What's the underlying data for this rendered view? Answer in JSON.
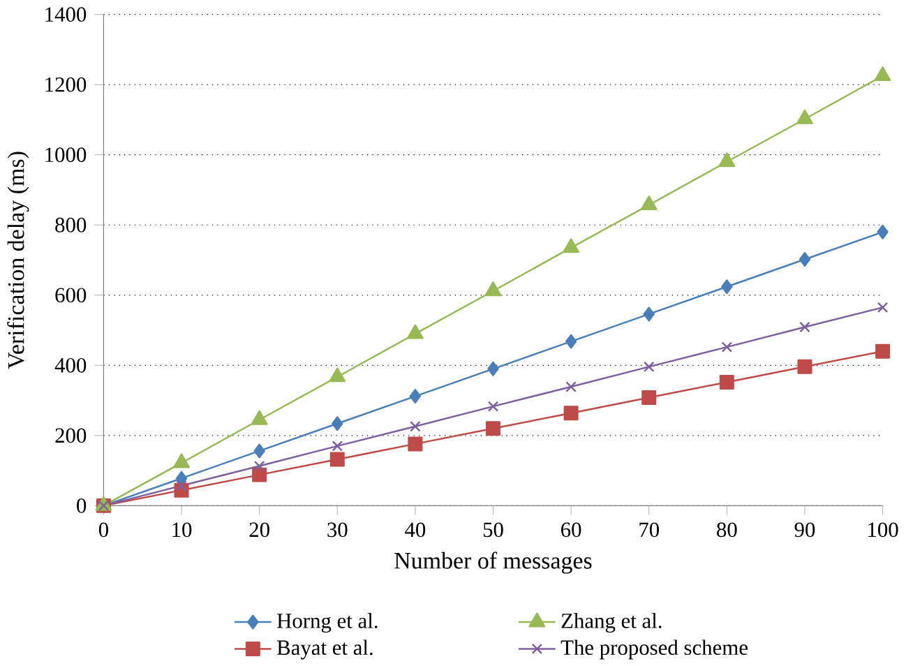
{
  "chart_data": {
    "type": "line",
    "xlabel": "Number of messages",
    "ylabel": "Verification delay (ms)",
    "x": [
      0,
      10,
      20,
      30,
      40,
      50,
      60,
      70,
      80,
      90,
      100
    ],
    "series": [
      {
        "name": "Horng et al.",
        "color": "#4a7ebb",
        "marker": "diamond",
        "values": [
          0,
          78,
          156,
          234,
          312,
          390,
          468,
          546,
          624,
          702,
          780
        ]
      },
      {
        "name": "Bayat et al.",
        "color": "#be4b48",
        "marker": "square",
        "values": [
          0,
          44,
          88,
          132,
          176,
          220,
          264,
          308,
          352,
          396,
          440
        ]
      },
      {
        "name": "Zhang et al.",
        "color": "#98b954",
        "marker": "triangle",
        "values": [
          0,
          122,
          245,
          367,
          490,
          612,
          735,
          857,
          980,
          1102,
          1225
        ]
      },
      {
        "name": "The proposed scheme",
        "color": "#7d60a0",
        "marker": "cross",
        "values": [
          0,
          57,
          113,
          170,
          226,
          283,
          339,
          396,
          452,
          509,
          565
        ]
      }
    ],
    "xlim": [
      0,
      100
    ],
    "xticks": [
      0,
      10,
      20,
      30,
      40,
      50,
      60,
      70,
      80,
      90,
      100
    ],
    "ylim": [
      0,
      1400
    ],
    "yticks": [
      0,
      200,
      400,
      600,
      800,
      1000,
      1200,
      1400
    ],
    "grid": "y",
    "legend": "bottom",
    "line_style": "solid"
  }
}
